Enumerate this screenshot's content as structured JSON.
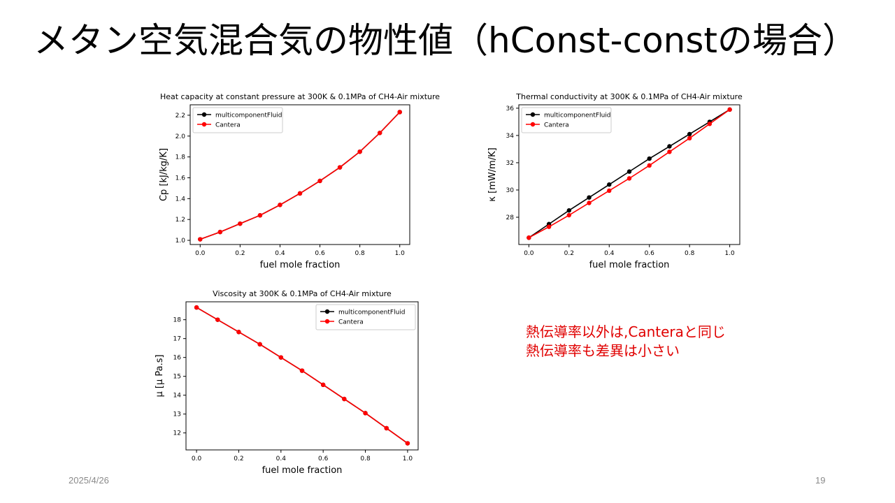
{
  "slide": {
    "title": "メタン空気混合気の物性値（hConst-constの場合）",
    "notes": [
      "熱伝導率以外は,Canteraと同じ",
      "熱伝導率も差異は小さい"
    ],
    "date": "2025/4/26",
    "page_number": "19"
  },
  "colors": {
    "multicomponentFluid": "#000000",
    "Cantera": "#ff0000",
    "note": "#e00000"
  },
  "chart_data": [
    {
      "type": "line",
      "title": "Heat capacity at constant pressure at 300K & 0.1MPa of CH4-Air mixture",
      "xlabel": "fuel mole fraction",
      "ylabel": "Cp [kJ/kg/K]",
      "xlim": [
        -0.05,
        1.05
      ],
      "ylim": [
        0.96,
        2.3
      ],
      "xticks": [
        0.0,
        0.2,
        0.4,
        0.6,
        0.8,
        1.0
      ],
      "xtick_labels": [
        "0.0",
        "0.2",
        "0.4",
        "0.6",
        "0.8",
        "1.0"
      ],
      "yticks": [
        1.0,
        1.2,
        1.4,
        1.6,
        1.8,
        2.0,
        2.2
      ],
      "ytick_labels": [
        "1.0",
        "1.2",
        "1.4",
        "1.6",
        "1.8",
        "2.0",
        "2.2"
      ],
      "legend_position": "top-left",
      "x": [
        0.0,
        0.1,
        0.2,
        0.3,
        0.4,
        0.5,
        0.6,
        0.7,
        0.8,
        0.9,
        1.0
      ],
      "series": [
        {
          "name": "multicomponentFluid",
          "color": "#000000",
          "values": [
            1.01,
            1.08,
            1.16,
            1.24,
            1.34,
            1.45,
            1.57,
            1.7,
            1.85,
            2.03,
            2.23
          ]
        },
        {
          "name": "Cantera",
          "color": "#ff0000",
          "values": [
            1.01,
            1.08,
            1.16,
            1.24,
            1.34,
            1.45,
            1.57,
            1.7,
            1.85,
            2.03,
            2.23
          ]
        }
      ]
    },
    {
      "type": "line",
      "title": "Thermal conductivity at 300K & 0.1MPa of CH4-Air mixture",
      "xlabel": "fuel mole fraction",
      "ylabel": "κ [mW/m/K]",
      "xlim": [
        -0.05,
        1.05
      ],
      "ylim": [
        26.0,
        36.25
      ],
      "xticks": [
        0.0,
        0.2,
        0.4,
        0.6,
        0.8,
        1.0
      ],
      "xtick_labels": [
        "0.0",
        "0.2",
        "0.4",
        "0.6",
        "0.8",
        "1.0"
      ],
      "yticks": [
        28,
        30,
        32,
        34,
        36
      ],
      "ytick_labels": [
        "28",
        "30",
        "32",
        "34",
        "36"
      ],
      "legend_position": "top-left",
      "x": [
        0.0,
        0.1,
        0.2,
        0.3,
        0.4,
        0.5,
        0.6,
        0.7,
        0.8,
        0.9,
        1.0
      ],
      "series": [
        {
          "name": "multicomponentFluid",
          "color": "#000000",
          "values": [
            26.5,
            27.5,
            28.5,
            29.45,
            30.4,
            31.35,
            32.3,
            33.2,
            34.1,
            35.0,
            35.9
          ]
        },
        {
          "name": "Cantera",
          "color": "#ff0000",
          "values": [
            26.5,
            27.3,
            28.15,
            29.05,
            29.95,
            30.85,
            31.8,
            32.8,
            33.8,
            34.85,
            35.9
          ]
        }
      ]
    },
    {
      "type": "line",
      "title": "Viscosity at 300K & 0.1MPa of CH4-Air mixture",
      "xlabel": "fuel mole fraction",
      "ylabel": "μ [μ Pa.s]",
      "xlim": [
        -0.05,
        1.05
      ],
      "ylim": [
        11.1,
        18.95
      ],
      "xticks": [
        0.0,
        0.2,
        0.4,
        0.6,
        0.8,
        1.0
      ],
      "xtick_labels": [
        "0.0",
        "0.2",
        "0.4",
        "0.6",
        "0.8",
        "1.0"
      ],
      "yticks": [
        12,
        13,
        14,
        15,
        16,
        17,
        18
      ],
      "ytick_labels": [
        "12",
        "13",
        "14",
        "15",
        "16",
        "17",
        "18"
      ],
      "legend_position": "top-right",
      "x": [
        0.0,
        0.1,
        0.2,
        0.3,
        0.4,
        0.5,
        0.6,
        0.7,
        0.8,
        0.9,
        1.0
      ],
      "series": [
        {
          "name": "multicomponentFluid",
          "color": "#000000",
          "values": [
            18.65,
            18.0,
            17.35,
            16.7,
            16.0,
            15.3,
            14.55,
            13.8,
            13.05,
            12.25,
            11.45
          ]
        },
        {
          "name": "Cantera",
          "color": "#ff0000",
          "values": [
            18.65,
            18.0,
            17.35,
            16.7,
            16.0,
            15.3,
            14.55,
            13.8,
            13.05,
            12.25,
            11.45
          ]
        }
      ]
    }
  ]
}
